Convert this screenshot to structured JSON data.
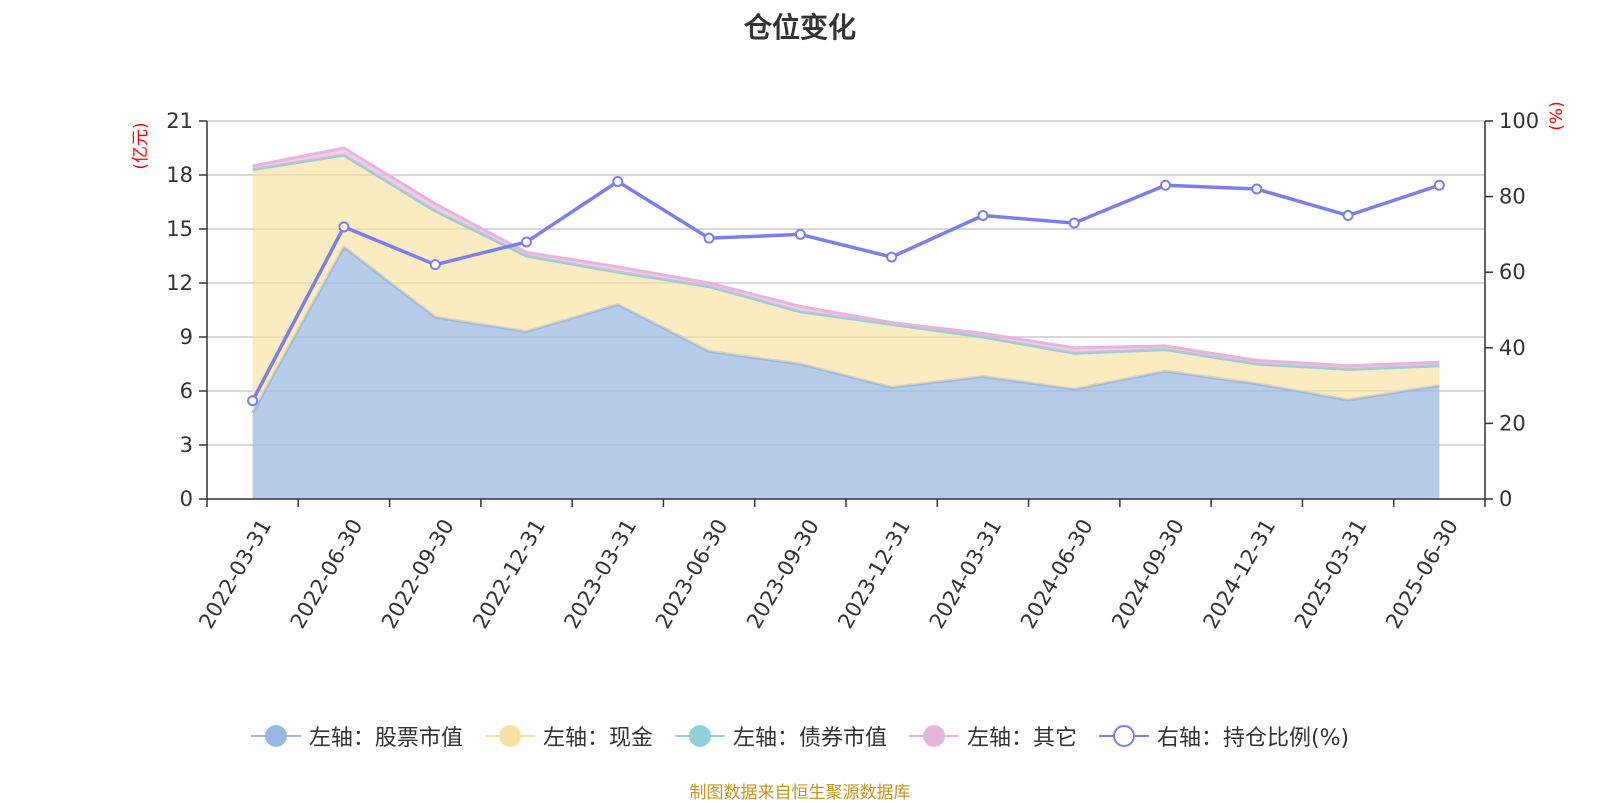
{
  "chart_data": {
    "type": "area",
    "title": "仓位变化",
    "left_axis_unit": "(亿元)",
    "right_axis_unit": "(%)",
    "categories": [
      "2022-03-31",
      "2022-06-30",
      "2022-09-30",
      "2022-12-31",
      "2023-03-31",
      "2023-06-30",
      "2023-09-30",
      "2023-12-31",
      "2024-03-31",
      "2024-06-30",
      "2024-09-30",
      "2024-12-31",
      "2025-03-31",
      "2025-06-30"
    ],
    "left_ylim": [
      0,
      21
    ],
    "left_yticks": [
      0,
      3,
      6,
      9,
      12,
      15,
      18,
      21
    ],
    "right_ylim": [
      0,
      100
    ],
    "right_yticks": [
      0,
      20,
      40,
      60,
      80,
      100
    ],
    "stacked": true,
    "series": [
      {
        "name": "左轴：股票市值",
        "axis": "left",
        "color": "#9bb8e0",
        "values": [
          4.8,
          14.0,
          10.1,
          9.3,
          10.8,
          8.2,
          7.5,
          6.2,
          6.8,
          6.1,
          7.1,
          6.4,
          5.5,
          6.3
        ]
      },
      {
        "name": "左轴：现金",
        "axis": "left",
        "color": "#f7e1a0",
        "values": [
          13.5,
          5.1,
          5.9,
          4.2,
          1.8,
          3.6,
          2.9,
          3.5,
          2.2,
          2.0,
          1.2,
          1.1,
          1.7,
          1.1
        ]
      },
      {
        "name": "左轴：债券市值",
        "axis": "left",
        "color": "#8fd1d7",
        "values": [
          0,
          0,
          0,
          0,
          0,
          0,
          0,
          0,
          0,
          0,
          0,
          0,
          0,
          0
        ]
      },
      {
        "name": "左轴：其它",
        "axis": "left",
        "color": "#e6b5dc",
        "values": [
          0.2,
          0.4,
          0.4,
          0.2,
          0.3,
          0.2,
          0.3,
          0.1,
          0.2,
          0.3,
          0.2,
          0.2,
          0.2,
          0.2
        ]
      },
      {
        "name": "右轴：持仓比例(%)",
        "axis": "right",
        "color": "#7b7fea",
        "values": [
          26,
          72,
          62,
          68,
          84,
          69,
          70,
          64,
          75,
          73,
          83,
          82,
          75,
          83
        ]
      }
    ],
    "grid": true,
    "legend_position": "bottom"
  },
  "footer": {
    "source": "制图数据来自恒生聚源数据库"
  }
}
